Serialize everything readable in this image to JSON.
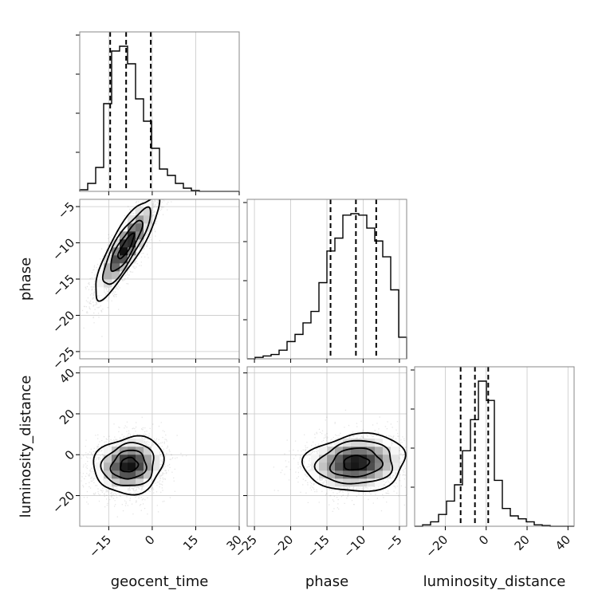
{
  "chart_data": {
    "type": "corner",
    "title": "",
    "parameters": [
      "geocent_time",
      "phase",
      "luminosity_distance"
    ],
    "ranges": {
      "geocent_time": [
        -25,
        30
      ],
      "phase": [
        -26,
        -4
      ],
      "luminosity_distance": [
        -35,
        43
      ]
    },
    "axis_labels": {
      "x": [
        "geocent_time",
        "phase",
        "luminosity_distance"
      ],
      "y": [
        "phase",
        "luminosity_distance"
      ]
    },
    "tick_labels": {
      "geocent_time": [
        "−15",
        "0",
        "15",
        "30"
      ],
      "phase": [
        "−25",
        "−20",
        "−15",
        "−10",
        "−5"
      ],
      "luminosity_distance": [
        "−20",
        "0",
        "20",
        "40"
      ]
    },
    "grid": true,
    "quantiles": {
      "geocent_time": [
        -14.5,
        -9,
        -0.5
      ],
      "phase": [
        -14.5,
        -11,
        -8.2
      ],
      "luminosity_distance": [
        -12.5,
        -5.5,
        1
      ]
    },
    "histograms": {
      "geocent_time": {
        "edges": [
          -25,
          -22.25,
          -19.5,
          -16.75,
          -14,
          -11.25,
          -8.5,
          -5.75,
          -3,
          -0.25,
          2.5,
          5.25,
          8,
          10.75,
          13.5,
          16.25,
          19,
          21.75,
          24.5,
          27.25,
          30
        ],
        "counts": [
          1,
          5,
          15,
          55,
          88,
          91,
          80,
          58,
          44,
          27,
          14,
          10,
          5,
          2,
          0.5,
          0,
          0,
          0,
          0,
          0
        ]
      },
      "phase": {
        "edges": [
          -26,
          -24.9,
          -23.8,
          -22.7,
          -21.6,
          -20.5,
          -19.4,
          -18.3,
          -17.2,
          -16.1,
          -15,
          -13.9,
          -12.8,
          -11.7,
          -10.6,
          -9.5,
          -8.4,
          -7.3,
          -6.2,
          -5.1,
          -4
        ],
        "counts": [
          0,
          1,
          2,
          3,
          6,
          12,
          17,
          25,
          33,
          53,
          75,
          84,
          100,
          101,
          100,
          91,
          82,
          71,
          48,
          15
        ]
      },
      "luminosity_distance": {
        "edges": [
          -35,
          -31.1,
          -27.2,
          -23.3,
          -19.4,
          -15.5,
          -11.6,
          -7.7,
          -3.8,
          0.1,
          4,
          7.9,
          11.8,
          15.7,
          19.6,
          23.5,
          27.4,
          31.3,
          35.2,
          39.1,
          43
        ],
        "counts": [
          0,
          1,
          3,
          8,
          17,
          28,
          51,
          72,
          98,
          85,
          31,
          12,
          7,
          5,
          3,
          1,
          0.5,
          0,
          0,
          0
        ]
      }
    },
    "joint_distributions": [
      {
        "x": "geocent_time",
        "y": "phase",
        "mean": [
          -9,
          -10.5
        ],
        "sd": [
          5.5,
          3.5
        ],
        "correlation": 0.85
      },
      {
        "x": "geocent_time",
        "y": "luminosity_distance",
        "mean": [
          -8,
          -5
        ],
        "sd": [
          6,
          7
        ],
        "correlation": 0.1
      },
      {
        "x": "phase",
        "y": "luminosity_distance",
        "mean": [
          -11,
          -4
        ],
        "sd": [
          3.5,
          7
        ],
        "correlation": 0.1
      }
    ],
    "contour_levels_sigma": [
      0.5,
      1,
      1.5,
      2
    ]
  }
}
